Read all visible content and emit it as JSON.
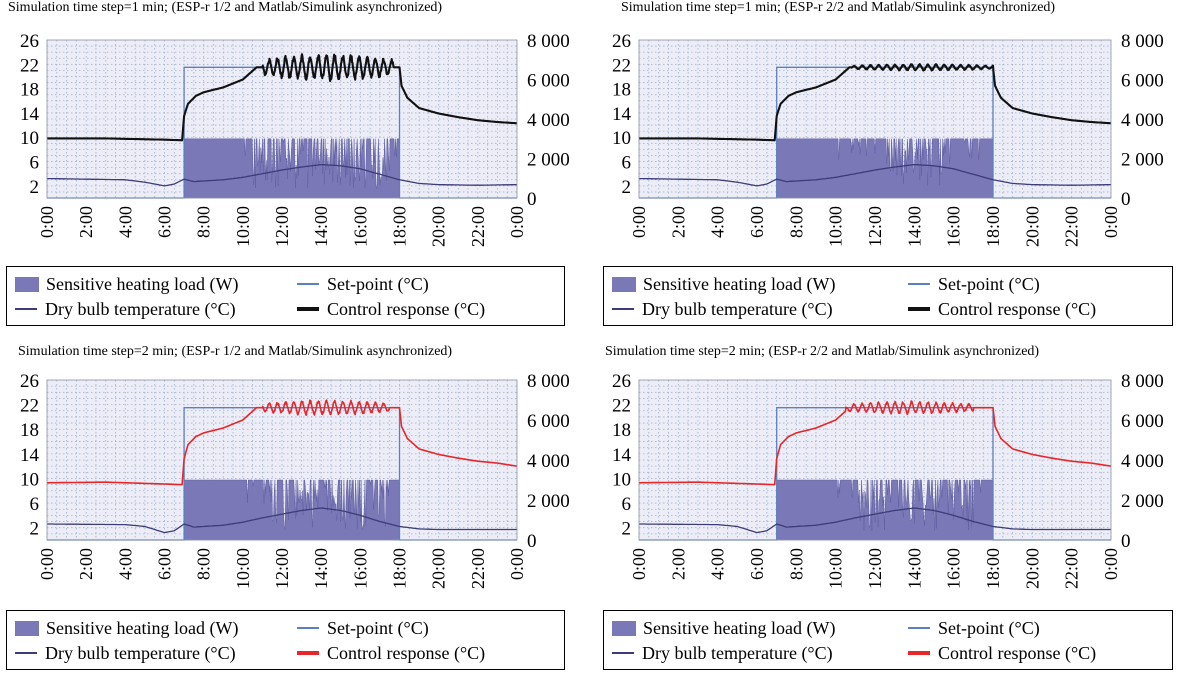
{
  "colors": {
    "load": "#7a78b6",
    "load_edge": "#5d5b9f",
    "setpoint": "#5b7fc1",
    "dry_bulb": "#3c3c78",
    "control_black": "#111111",
    "control_red": "#e8262a",
    "grid": "#9fb0c9",
    "plot_bg": "#ededf7"
  },
  "chart_data": [
    {
      "type": "area",
      "title": "Simulation time step=1 min; (ESP-r 1/2 and Matlab/Simulink asynchronized)",
      "control_color": "black",
      "x_ticks": [
        "0:00",
        "2:00",
        "4:00",
        "6:00",
        "8:00",
        "10:00",
        "12:00",
        "14:00",
        "16:00",
        "18:00",
        "20:00",
        "22:00",
        "0:00"
      ],
      "y_left_ticks": [
        "2",
        "6",
        "10",
        "14",
        "18",
        "22",
        "26"
      ],
      "y_right_ticks": [
        "0",
        "2 000",
        "4 000",
        "6 000",
        "8 000"
      ],
      "ylim_left": [
        0,
        26
      ],
      "ylim_right": [
        0,
        8000
      ],
      "grid": true,
      "legend": "below",
      "legend_labels": {
        "load": "Sensitive heating load (W)",
        "setpoint": "Set-point (°C)",
        "dry_bulb": "Dry bulb temperature (°C)",
        "control": "Control response (°C)"
      },
      "series": {
        "heating_load_W": {
          "hours": [
            0,
            7,
            7,
            18,
            18,
            24
          ],
          "values": [
            0,
            0,
            3000,
            3000,
            0,
            0
          ],
          "dips_between_hours": [
            10.5,
            17.5
          ]
        },
        "setpoint_C": {
          "hours": [
            0,
            7,
            7,
            18,
            18,
            24
          ],
          "values": [
            0,
            0,
            21.5,
            21.5,
            0,
            0
          ]
        },
        "dry_bulb_C": {
          "hours": [
            0,
            4,
            5,
            6,
            6.5,
            7,
            7.5,
            9,
            10,
            11,
            12,
            13,
            14,
            15,
            16,
            17,
            18,
            19,
            20,
            22,
            24
          ],
          "values": [
            3.2,
            3.0,
            2.6,
            2.0,
            2.3,
            3.1,
            2.7,
            3.0,
            3.4,
            4.0,
            4.6,
            5.1,
            5.5,
            5.3,
            4.8,
            3.9,
            3.0,
            2.4,
            2.2,
            2.1,
            2.2
          ]
        },
        "control_response_C": {
          "hours": [
            0,
            3,
            6,
            6.9,
            7.0,
            7.2,
            7.6,
            8,
            9,
            10,
            10.7,
            11,
            18,
            18.1,
            18.4,
            19,
            20,
            21,
            22,
            23,
            24
          ],
          "values": [
            9.8,
            9.8,
            9.6,
            9.5,
            13.5,
            15.5,
            16.8,
            17.4,
            18.2,
            19.5,
            21.5,
            21.5,
            21.5,
            18.5,
            16.5,
            14.8,
            13.9,
            13.3,
            12.8,
            12.5,
            12.3
          ],
          "oscillation_between_hours": [
            11,
            17.7
          ],
          "oscillation_amplitude_C": 2.2
        }
      }
    },
    {
      "type": "area",
      "title": "Simulation time step=1 min; (ESP-r 2/2 and Matlab/Simulink asynchronized)",
      "control_color": "black",
      "x_ticks": [
        "0:00",
        "2:00",
        "4:00",
        "6:00",
        "8:00",
        "10:00",
        "12:00",
        "14:00",
        "16:00",
        "18:00",
        "20:00",
        "22:00",
        "0:00"
      ],
      "y_left_ticks": [
        "2",
        "6",
        "10",
        "14",
        "18",
        "22",
        "26"
      ],
      "y_right_ticks": [
        "0",
        "2 000",
        "4 000",
        "6 000",
        "8 000"
      ],
      "ylim_left": [
        0,
        26
      ],
      "ylim_right": [
        0,
        8000
      ],
      "grid": true,
      "legend": "below",
      "legend_labels": {
        "load": "Sensitive heating load (W)",
        "setpoint": "Set-point (°C)",
        "dry_bulb": "Dry bulb temperature (°C)",
        "control": "Control response (°C)"
      },
      "series": {
        "heating_load_W": {
          "hours": [
            0,
            7,
            7,
            18,
            18,
            24
          ],
          "values": [
            0,
            0,
            3000,
            3000,
            0,
            0
          ],
          "dips_between_hours": [
            12.5,
            15.5
          ]
        },
        "setpoint_C": {
          "hours": [
            0,
            7,
            7,
            18,
            18,
            24
          ],
          "values": [
            0,
            0,
            21.5,
            21.5,
            0,
            0
          ]
        },
        "dry_bulb_C": {
          "hours": [
            0,
            4,
            5,
            6,
            6.5,
            7,
            7.5,
            9,
            10,
            11,
            12,
            13,
            14,
            15,
            16,
            17,
            18,
            19,
            20,
            22,
            24
          ],
          "values": [
            3.2,
            3.0,
            2.6,
            2.0,
            2.3,
            3.1,
            2.7,
            3.0,
            3.4,
            4.0,
            4.6,
            5.1,
            5.5,
            5.3,
            4.8,
            3.9,
            3.0,
            2.4,
            2.2,
            2.1,
            2.2
          ]
        },
        "control_response_C": {
          "hours": [
            0,
            3,
            6,
            6.9,
            7.0,
            7.2,
            7.6,
            8,
            9,
            10,
            10.7,
            11,
            18,
            18.1,
            18.4,
            19,
            20,
            21,
            22,
            23,
            24
          ],
          "values": [
            9.8,
            9.8,
            9.6,
            9.5,
            13.5,
            15.5,
            16.8,
            17.4,
            18.2,
            19.5,
            21.5,
            21.5,
            21.5,
            18.5,
            16.5,
            14.8,
            13.9,
            13.3,
            12.8,
            12.5,
            12.3
          ],
          "oscillation_between_hours": [
            10.8,
            18
          ],
          "oscillation_amplitude_C": 0.5
        }
      }
    },
    {
      "type": "area",
      "title": "Simulation time step=2 min; (ESP-r 1/2 and Matlab/Simulink asynchronized)",
      "control_color": "red",
      "x_ticks": [
        "0:00",
        "2:00",
        "4:00",
        "6:00",
        "8:00",
        "10:00",
        "12:00",
        "14:00",
        "16:00",
        "18:00",
        "20:00",
        "22:00",
        "0:00"
      ],
      "y_left_ticks": [
        "2",
        "6",
        "10",
        "14",
        "18",
        "22",
        "26"
      ],
      "y_right_ticks": [
        "0",
        "2 000",
        "4 000",
        "6 000",
        "8 000"
      ],
      "ylim_left": [
        0,
        26
      ],
      "ylim_right": [
        0,
        8000
      ],
      "grid": true,
      "legend": "below",
      "legend_labels": {
        "load": "Sensitive heating load (W)",
        "setpoint": "Set-point (°C)",
        "dry_bulb": "Dry bulb temperature (°C)",
        "control": "Control response (°C)"
      },
      "series": {
        "heating_load_W": {
          "hours": [
            0,
            7,
            7,
            18,
            18,
            24
          ],
          "values": [
            0,
            0,
            3000,
            3000,
            0,
            0
          ],
          "dips_between_hours": [
            11,
            17.5
          ]
        },
        "setpoint_C": {
          "hours": [
            0,
            7,
            7,
            18,
            18,
            24
          ],
          "values": [
            0,
            0,
            21.5,
            21.5,
            0,
            0
          ]
        },
        "dry_bulb_C": {
          "hours": [
            0,
            4,
            5,
            6,
            6.5,
            7,
            7.5,
            9,
            10,
            11,
            12,
            13,
            14,
            15,
            16,
            17,
            18,
            19,
            20,
            22,
            24
          ],
          "values": [
            2.6,
            2.5,
            2.2,
            1.2,
            1.5,
            2.6,
            2.1,
            2.4,
            2.9,
            3.6,
            4.2,
            4.8,
            5.2,
            4.8,
            4.0,
            3.0,
            2.2,
            1.8,
            1.7,
            1.7,
            1.7
          ]
        },
        "control_response_C": {
          "hours": [
            0,
            3,
            6,
            6.9,
            7.0,
            7.2,
            7.6,
            8,
            9,
            10,
            10.7,
            11,
            18,
            18.1,
            18.4,
            19,
            20,
            21,
            22,
            23,
            24
          ],
          "values": [
            9.3,
            9.4,
            9.1,
            9.0,
            13.2,
            15.5,
            16.8,
            17.4,
            18.2,
            19.5,
            21.5,
            21.5,
            21.5,
            18.5,
            16.5,
            14.8,
            13.9,
            13.3,
            12.8,
            12.5,
            12.0
          ],
          "oscillation_between_hours": [
            11,
            17.5
          ],
          "oscillation_amplitude_C": 1.2
        }
      }
    },
    {
      "type": "area",
      "title": "Simulation time step=2 min; (ESP-r 2/2 and Matlab/Simulink asynchronized)",
      "control_color": "red",
      "x_ticks": [
        "0:00",
        "2:00",
        "4:00",
        "6:00",
        "8:00",
        "10:00",
        "12:00",
        "14:00",
        "16:00",
        "18:00",
        "20:00",
        "22:00",
        "0:00"
      ],
      "y_left_ticks": [
        "2",
        "6",
        "10",
        "14",
        "18",
        "22",
        "26"
      ],
      "y_right_ticks": [
        "0",
        "2 000",
        "4 000",
        "6 000",
        "8 000"
      ],
      "ylim_left": [
        0,
        26
      ],
      "ylim_right": [
        0,
        8000
      ],
      "grid": true,
      "legend": "below",
      "legend_labels": {
        "load": "Sensitive heating load (W)",
        "setpoint": "Set-point (°C)",
        "dry_bulb": "Dry bulb temperature (°C)",
        "control": "Control response (°C)"
      },
      "series": {
        "heating_load_W": {
          "hours": [
            0,
            7,
            7,
            18,
            18,
            24
          ],
          "values": [
            0,
            0,
            3000,
            3000,
            0,
            0
          ],
          "dips_between_hours": [
            11,
            17
          ]
        },
        "setpoint_C": {
          "hours": [
            0,
            7,
            7,
            18,
            18,
            24
          ],
          "values": [
            0,
            0,
            21.5,
            21.5,
            0,
            0
          ]
        },
        "dry_bulb_C": {
          "hours": [
            0,
            4,
            5,
            6,
            6.5,
            7,
            7.5,
            9,
            10,
            11,
            12,
            13,
            14,
            15,
            16,
            17,
            18,
            19,
            20,
            22,
            24
          ],
          "values": [
            2.6,
            2.5,
            2.2,
            1.2,
            1.5,
            2.6,
            2.1,
            2.4,
            2.9,
            3.6,
            4.2,
            4.8,
            5.2,
            4.8,
            4.0,
            3.0,
            2.2,
            1.8,
            1.7,
            1.7,
            1.7
          ]
        },
        "control_response_C": {
          "hours": [
            0,
            3,
            6,
            6.9,
            7.0,
            7.2,
            7.6,
            8,
            9,
            10,
            10.7,
            11,
            18,
            18.1,
            18.4,
            19,
            20,
            21,
            22,
            23,
            24
          ],
          "values": [
            9.3,
            9.4,
            9.1,
            9.0,
            13.2,
            15.5,
            16.8,
            17.4,
            18.2,
            19.5,
            21.5,
            21.5,
            21.5,
            18.5,
            16.5,
            14.8,
            13.9,
            13.3,
            12.8,
            12.5,
            12.0
          ],
          "oscillation_between_hours": [
            10.5,
            17
          ],
          "oscillation_amplitude_C": 1.0
        }
      }
    }
  ]
}
